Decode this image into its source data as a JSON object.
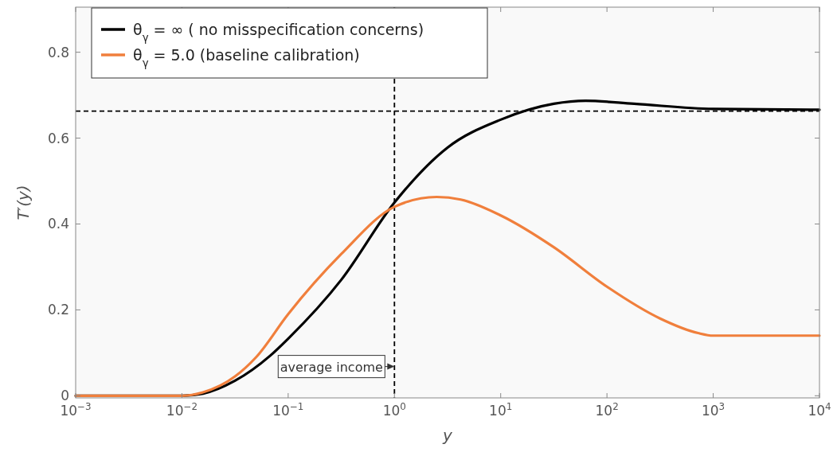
{
  "chart_data": {
    "type": "line",
    "xlabel": "y",
    "ylabel": "T′(y)",
    "log": "x",
    "xlim": [
      0.001,
      10000
    ],
    "ylim": [
      -0.005,
      0.905
    ],
    "xticks": [
      {
        "value": 0.001,
        "label": "10$^{−3}$"
      },
      {
        "value": 0.01,
        "label": "10$^{−2}$"
      },
      {
        "value": 0.1,
        "label": "10$^{−1}$"
      },
      {
        "value": 1,
        "label": "10$^{0}$"
      },
      {
        "value": 10,
        "label": "10$^{1}$"
      },
      {
        "value": 100,
        "label": "10$^{2}$"
      },
      {
        "value": 1000,
        "label": "10$^{3}$"
      },
      {
        "value": 10000,
        "label": "10$^{4}$"
      }
    ],
    "yticks": [
      0,
      0.2,
      0.4,
      0.6,
      0.8
    ],
    "grid": false,
    "legend": "top left",
    "marker": "none",
    "line_style": "solid",
    "series": [
      {
        "name": "θ$_{γ}$ = ∞ ( no misspecification concerns)",
        "color": "#000000",
        "x": [
          0.001,
          0.01,
          0.0158,
          0.0316,
          0.0675,
          0.1,
          0.316,
          1,
          3.16,
          10,
          31.6,
          63,
          180,
          1000,
          10000
        ],
        "values": [
          0,
          0,
          0.005,
          0.035,
          0.093,
          0.133,
          0.27,
          0.45,
          0.578,
          0.643,
          0.68,
          0.687,
          0.68,
          0.668,
          0.666
        ]
      },
      {
        "name": "θ$_{γ}$ = 5.0 (baseline calibration)",
        "color": "#f07f3c",
        "x": [
          0.001,
          0.01,
          0.0158,
          0.0316,
          0.05,
          0.1,
          0.316,
          1,
          2.5,
          4.2,
          10,
          31.6,
          100,
          316,
          720,
          1000,
          10000
        ],
        "values": [
          0,
          0,
          0.008,
          0.045,
          0.09,
          0.19,
          0.33,
          0.44,
          0.463,
          0.457,
          0.42,
          0.346,
          0.254,
          0.18,
          0.146,
          0.14,
          0.14
        ]
      }
    ],
    "ref_lines": [
      {
        "axis": "y",
        "value": 0.663,
        "color": "#000000",
        "line_style": "dashed"
      },
      {
        "axis": "x",
        "value": 1,
        "color": "#000000",
        "line_style": "dashed"
      }
    ],
    "annotations": [
      {
        "text": "average income",
        "x": 1,
        "y": 0.068
      }
    ]
  }
}
